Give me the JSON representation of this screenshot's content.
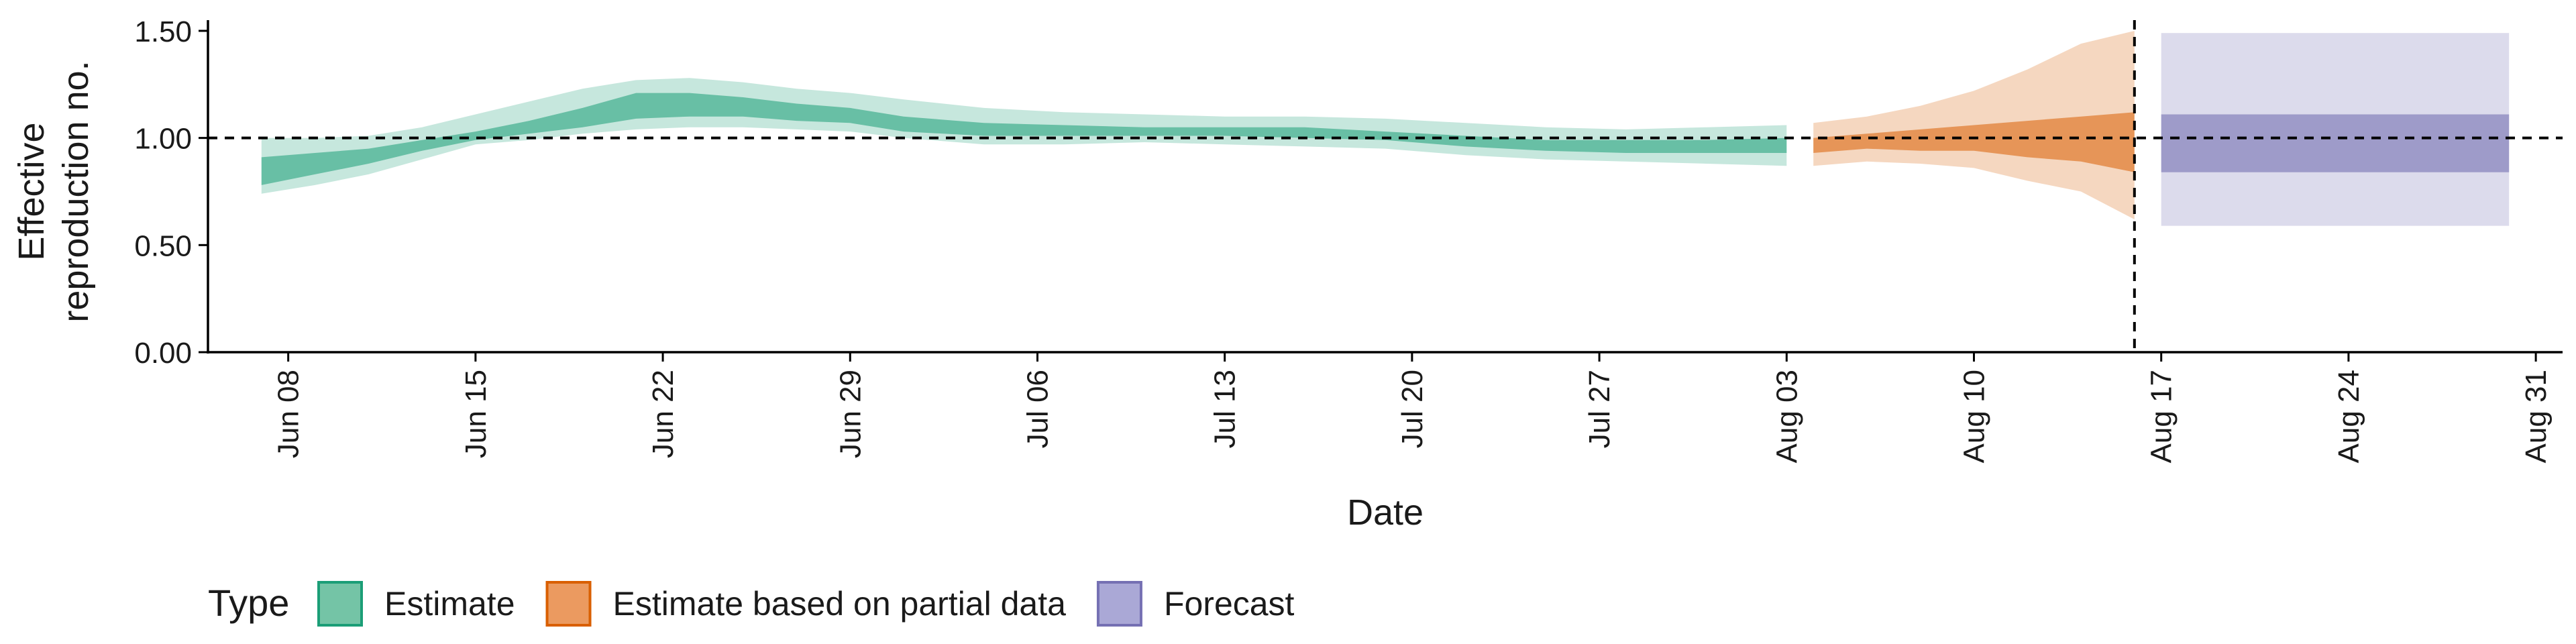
{
  "chart_data": {
    "type": "area",
    "xlabel": "Date",
    "ylabel_lines": [
      "Effective",
      "reproduction no."
    ],
    "ylim": [
      0,
      1.55
    ],
    "y_ticks": [
      0.0,
      0.5,
      1.0,
      1.5
    ],
    "y_tick_labels": [
      "0.00",
      "0.50",
      "1.00",
      "1.50"
    ],
    "x_range": [
      "2020-06-05",
      "2020-09-01"
    ],
    "x_ticks": [
      "2020-06-08",
      "2020-06-15",
      "2020-06-22",
      "2020-06-29",
      "2020-07-06",
      "2020-07-13",
      "2020-07-20",
      "2020-07-27",
      "2020-08-03",
      "2020-08-10",
      "2020-08-17",
      "2020-08-24",
      "2020-08-31"
    ],
    "x_tick_labels": [
      "Jun 08",
      "Jun 15",
      "Jun 22",
      "Jun 29",
      "Jul 06",
      "Jul 13",
      "Jul 20",
      "Jul 27",
      "Aug 03",
      "Aug 10",
      "Aug 17",
      "Aug 24",
      "Aug 31"
    ],
    "reference_hline": 1.0,
    "reference_vline": "2020-08-16",
    "grid": false,
    "legend": {
      "title": "Type",
      "position": "bottom-left",
      "entries": [
        {
          "label": "Estimate",
          "fill": "#74c4a6",
          "border": "#1b9e77"
        },
        {
          "label": "Estimate based on partial data",
          "fill": "#eb9a60",
          "border": "#d95f02"
        },
        {
          "label": "Forecast",
          "fill": "#aaa8d6",
          "border": "#7570b3"
        }
      ]
    },
    "series": [
      {
        "name": "Estimate",
        "color": "#1b9e77",
        "inner_alpha": 0.55,
        "outer_alpha": 0.25,
        "points": [
          {
            "date": "2020-06-07",
            "outer_lo": 0.74,
            "inner_lo": 0.78,
            "inner_hi": 0.91,
            "outer_hi": 1.0
          },
          {
            "date": "2020-06-09",
            "outer_lo": 0.78,
            "inner_lo": 0.83,
            "inner_hi": 0.93,
            "outer_hi": 1.0
          },
          {
            "date": "2020-06-11",
            "outer_lo": 0.83,
            "inner_lo": 0.88,
            "inner_hi": 0.95,
            "outer_hi": 1.01
          },
          {
            "date": "2020-06-13",
            "outer_lo": 0.9,
            "inner_lo": 0.94,
            "inner_hi": 0.99,
            "outer_hi": 1.05
          },
          {
            "date": "2020-06-15",
            "outer_lo": 0.97,
            "inner_lo": 0.99,
            "inner_hi": 1.03,
            "outer_hi": 1.11
          },
          {
            "date": "2020-06-17",
            "outer_lo": 0.99,
            "inner_lo": 1.02,
            "inner_hi": 1.08,
            "outer_hi": 1.17
          },
          {
            "date": "2020-06-19",
            "outer_lo": 1.02,
            "inner_lo": 1.05,
            "inner_hi": 1.14,
            "outer_hi": 1.23
          },
          {
            "date": "2020-06-21",
            "outer_lo": 1.04,
            "inner_lo": 1.09,
            "inner_hi": 1.21,
            "outer_hi": 1.27
          },
          {
            "date": "2020-06-23",
            "outer_lo": 1.05,
            "inner_lo": 1.1,
            "inner_hi": 1.21,
            "outer_hi": 1.28
          },
          {
            "date": "2020-06-25",
            "outer_lo": 1.05,
            "inner_lo": 1.1,
            "inner_hi": 1.19,
            "outer_hi": 1.26
          },
          {
            "date": "2020-06-27",
            "outer_lo": 1.04,
            "inner_lo": 1.08,
            "inner_hi": 1.16,
            "outer_hi": 1.23
          },
          {
            "date": "2020-06-29",
            "outer_lo": 1.03,
            "inner_lo": 1.07,
            "inner_hi": 1.14,
            "outer_hi": 1.21
          },
          {
            "date": "2020-07-01",
            "outer_lo": 1.0,
            "inner_lo": 1.03,
            "inner_hi": 1.1,
            "outer_hi": 1.18
          },
          {
            "date": "2020-07-04",
            "outer_lo": 0.97,
            "inner_lo": 1.01,
            "inner_hi": 1.07,
            "outer_hi": 1.14
          },
          {
            "date": "2020-07-07",
            "outer_lo": 0.97,
            "inner_lo": 1.01,
            "inner_hi": 1.06,
            "outer_hi": 1.12
          },
          {
            "date": "2020-07-10",
            "outer_lo": 0.98,
            "inner_lo": 1.01,
            "inner_hi": 1.05,
            "outer_hi": 1.11
          },
          {
            "date": "2020-07-13",
            "outer_lo": 0.97,
            "inner_lo": 1.01,
            "inner_hi": 1.05,
            "outer_hi": 1.1
          },
          {
            "date": "2020-07-16",
            "outer_lo": 0.96,
            "inner_lo": 1.0,
            "inner_hi": 1.05,
            "outer_hi": 1.1
          },
          {
            "date": "2020-07-19",
            "outer_lo": 0.95,
            "inner_lo": 0.99,
            "inner_hi": 1.03,
            "outer_hi": 1.09
          },
          {
            "date": "2020-07-22",
            "outer_lo": 0.92,
            "inner_lo": 0.96,
            "inner_hi": 1.01,
            "outer_hi": 1.07
          },
          {
            "date": "2020-07-25",
            "outer_lo": 0.9,
            "inner_lo": 0.94,
            "inner_hi": 0.99,
            "outer_hi": 1.05
          },
          {
            "date": "2020-07-28",
            "outer_lo": 0.89,
            "inner_lo": 0.93,
            "inner_hi": 0.99,
            "outer_hi": 1.04
          },
          {
            "date": "2020-07-31",
            "outer_lo": 0.88,
            "inner_lo": 0.93,
            "inner_hi": 0.99,
            "outer_hi": 1.05
          },
          {
            "date": "2020-08-03",
            "outer_lo": 0.87,
            "inner_lo": 0.93,
            "inner_hi": 1.0,
            "outer_hi": 1.06
          }
        ]
      },
      {
        "name": "Estimate based on partial data",
        "color": "#d95f02",
        "inner_alpha": 0.55,
        "outer_alpha": 0.25,
        "points": [
          {
            "date": "2020-08-04",
            "outer_lo": 0.87,
            "inner_lo": 0.93,
            "inner_hi": 1.0,
            "outer_hi": 1.07
          },
          {
            "date": "2020-08-06",
            "outer_lo": 0.89,
            "inner_lo": 0.95,
            "inner_hi": 1.02,
            "outer_hi": 1.1
          },
          {
            "date": "2020-08-08",
            "outer_lo": 0.88,
            "inner_lo": 0.94,
            "inner_hi": 1.04,
            "outer_hi": 1.15
          },
          {
            "date": "2020-08-10",
            "outer_lo": 0.86,
            "inner_lo": 0.94,
            "inner_hi": 1.06,
            "outer_hi": 1.22
          },
          {
            "date": "2020-08-12",
            "outer_lo": 0.8,
            "inner_lo": 0.91,
            "inner_hi": 1.08,
            "outer_hi": 1.32
          },
          {
            "date": "2020-08-14",
            "outer_lo": 0.75,
            "inner_lo": 0.89,
            "inner_hi": 1.1,
            "outer_hi": 1.44
          },
          {
            "date": "2020-08-16",
            "outer_lo": 0.62,
            "inner_lo": 0.84,
            "inner_hi": 1.12,
            "outer_hi": 1.5
          }
        ]
      },
      {
        "name": "Forecast",
        "color": "#7570b3",
        "inner_alpha": 0.6,
        "outer_alpha": 0.25,
        "points": [
          {
            "date": "2020-08-17",
            "outer_lo": 0.59,
            "inner_lo": 0.84,
            "inner_hi": 1.11,
            "outer_hi": 1.49
          },
          {
            "date": "2020-08-30",
            "outer_lo": 0.59,
            "inner_lo": 0.84,
            "inner_hi": 1.11,
            "outer_hi": 1.49
          }
        ]
      }
    ]
  }
}
